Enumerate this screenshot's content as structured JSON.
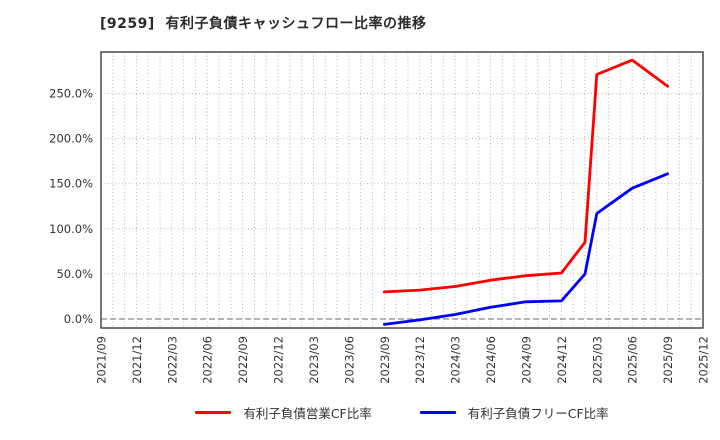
{
  "title": "[9259]  有利子負債キャッシュフロー比率の推移",
  "chart_data": {
    "type": "line",
    "title": "[9259] 有利子負債キャッシュフロー比率の推移",
    "xlabel": "",
    "ylabel": "",
    "grid": "on (dotted; vertical line every month, horizontal line every 50%)",
    "legend_position": "bottom-center",
    "x_start_month": "2021/09",
    "x_end_month": "2025/12",
    "x_tick_interval_months": 3,
    "x_tick_labels": [
      "2021/09",
      "2021/12",
      "2022/03",
      "2022/06",
      "2022/09",
      "2022/12",
      "2023/03",
      "2023/06",
      "2023/09",
      "2023/12",
      "2024/03",
      "2024/06",
      "2024/09",
      "2024/12",
      "2025/03",
      "2025/06",
      "2025/09",
      "2025/12"
    ],
    "y_tick_values": [
      0,
      50,
      100,
      150,
      200,
      250
    ],
    "y_tick_labels": [
      "0.0%",
      "50.0%",
      "100.0%",
      "150.0%",
      "200.0%",
      "250.0%"
    ],
    "ylim": [
      -10,
      296
    ],
    "series": [
      {
        "name": "有利子負債営業CF比率",
        "color": "#ff0000",
        "points": [
          [
            "2023/09",
            30
          ],
          [
            "2023/12",
            32
          ],
          [
            "2024/03",
            36
          ],
          [
            "2024/06",
            43
          ],
          [
            "2024/09",
            48
          ],
          [
            "2024/12",
            51
          ],
          [
            "2025/02",
            85
          ],
          [
            "2025/03",
            271
          ],
          [
            "2025/06",
            287
          ],
          [
            "2025/09",
            258
          ]
        ]
      },
      {
        "name": "有利子負債フリーCF比率",
        "color": "#0000ff",
        "points": [
          [
            "2023/09",
            -6
          ],
          [
            "2023/12",
            -1
          ],
          [
            "2024/03",
            5
          ],
          [
            "2024/06",
            13
          ],
          [
            "2024/09",
            19
          ],
          [
            "2024/12",
            20
          ],
          [
            "2025/02",
            50
          ],
          [
            "2025/03",
            117
          ],
          [
            "2025/06",
            145
          ],
          [
            "2025/09",
            161
          ]
        ]
      }
    ]
  },
  "legend": {
    "items": [
      {
        "label": "有利子負債営業CF比率",
        "color": "#ff0000"
      },
      {
        "label": "有利子負債フリーCF比率",
        "color": "#0000ff"
      }
    ]
  },
  "colors": {
    "grid": "#b8b8b8",
    "zero_line": "#8a8a8a",
    "border": "#3c3c3c",
    "tick_text": "#333333",
    "background": "#ffffff"
  }
}
